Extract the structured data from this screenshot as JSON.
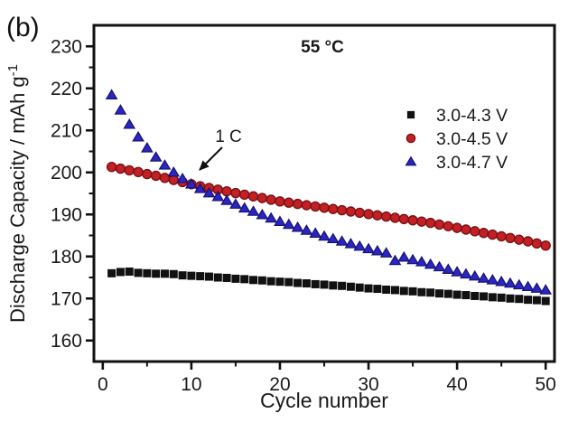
{
  "figure_label": "(b)",
  "colors": {
    "axis": "#111111",
    "black_series": "#111111",
    "red_fill": "#c32026",
    "red_edge": "#7c1013",
    "blue_fill": "#2a25c3",
    "blue_edge": "#16126e"
  },
  "chart_data": {
    "type": "scatter",
    "title": "55 °C",
    "xlabel": "Cycle number",
    "ylabel": "Discharge Capacity / mAh g⁻¹",
    "ylabel_main": "Discharge Capacity / mAh g",
    "ylabel_sup": "-1",
    "annotation": "1 C",
    "grid": false,
    "legend_position": "inside right",
    "xlim": [
      -1,
      51
    ],
    "ylim": [
      155,
      235
    ],
    "x_major_ticks": [
      0,
      10,
      20,
      30,
      40,
      50
    ],
    "x_minor_ticks": [
      5,
      15,
      25,
      35,
      45
    ],
    "y_major_ticks": [
      160,
      170,
      180,
      190,
      200,
      210,
      220,
      230
    ],
    "y_minor_ticks": [
      165,
      175,
      185,
      195,
      205,
      215,
      225
    ],
    "x": [
      1,
      2,
      3,
      4,
      5,
      6,
      7,
      8,
      9,
      10,
      11,
      12,
      13,
      14,
      15,
      16,
      17,
      18,
      19,
      20,
      21,
      22,
      23,
      24,
      25,
      26,
      27,
      28,
      29,
      30,
      31,
      32,
      33,
      34,
      35,
      36,
      37,
      38,
      39,
      40,
      41,
      42,
      43,
      44,
      45,
      46,
      47,
      48,
      49,
      50
    ],
    "series": [
      {
        "name": "3.0-4.3 V",
        "marker": "square",
        "color": "#111111",
        "edge": "#111111",
        "values": [
          176.0,
          176.3,
          176.4,
          176.1,
          176.0,
          175.9,
          175.9,
          175.8,
          175.5,
          175.4,
          175.3,
          175.2,
          175.0,
          174.9,
          174.7,
          174.6,
          174.4,
          174.3,
          174.1,
          174.0,
          173.9,
          173.7,
          173.6,
          173.4,
          173.3,
          173.1,
          173.0,
          172.8,
          172.6,
          172.4,
          172.3,
          172.1,
          172.0,
          171.8,
          171.7,
          171.5,
          171.4,
          171.2,
          171.1,
          170.9,
          170.8,
          170.6,
          170.5,
          170.3,
          170.2,
          170.0,
          169.9,
          169.7,
          169.6,
          169.4
        ]
      },
      {
        "name": "3.0-4.5 V",
        "marker": "circle",
        "color": "#c32026",
        "edge": "#7c1013",
        "values": [
          201.3,
          200.9,
          200.5,
          200.1,
          199.6,
          199.2,
          198.7,
          198.2,
          197.7,
          197.2,
          196.7,
          196.3,
          195.9,
          195.5,
          195.1,
          194.7,
          194.3,
          193.9,
          193.5,
          193.1,
          192.8,
          192.5,
          192.2,
          191.9,
          191.6,
          191.3,
          191.0,
          190.7,
          190.4,
          190.1,
          189.8,
          189.5,
          189.2,
          188.9,
          188.6,
          188.3,
          188.0,
          187.6,
          187.2,
          186.8,
          186.4,
          186.0,
          185.6,
          185.2,
          184.8,
          184.4,
          184.0,
          183.6,
          183.1,
          182.6
        ]
      },
      {
        "name": "3.0-4.7 V",
        "marker": "triangle",
        "color": "#2a25c3",
        "edge": "#16126e",
        "values": [
          218.4,
          214.8,
          211.4,
          208.4,
          205.8,
          203.6,
          201.7,
          200.0,
          198.5,
          197.2,
          196.1,
          195.1,
          194.2,
          193.3,
          192.4,
          191.5,
          190.7,
          189.9,
          189.1,
          188.3,
          187.6,
          186.9,
          186.2,
          185.5,
          184.8,
          184.2,
          183.6,
          183.0,
          182.4,
          181.8,
          181.3,
          180.8,
          179.0,
          179.8,
          179.2,
          178.7,
          178.1,
          177.5,
          176.9,
          176.3,
          175.8,
          175.3,
          174.8,
          174.4,
          174.0,
          173.6,
          173.2,
          172.8,
          172.4,
          172.0
        ]
      }
    ]
  }
}
